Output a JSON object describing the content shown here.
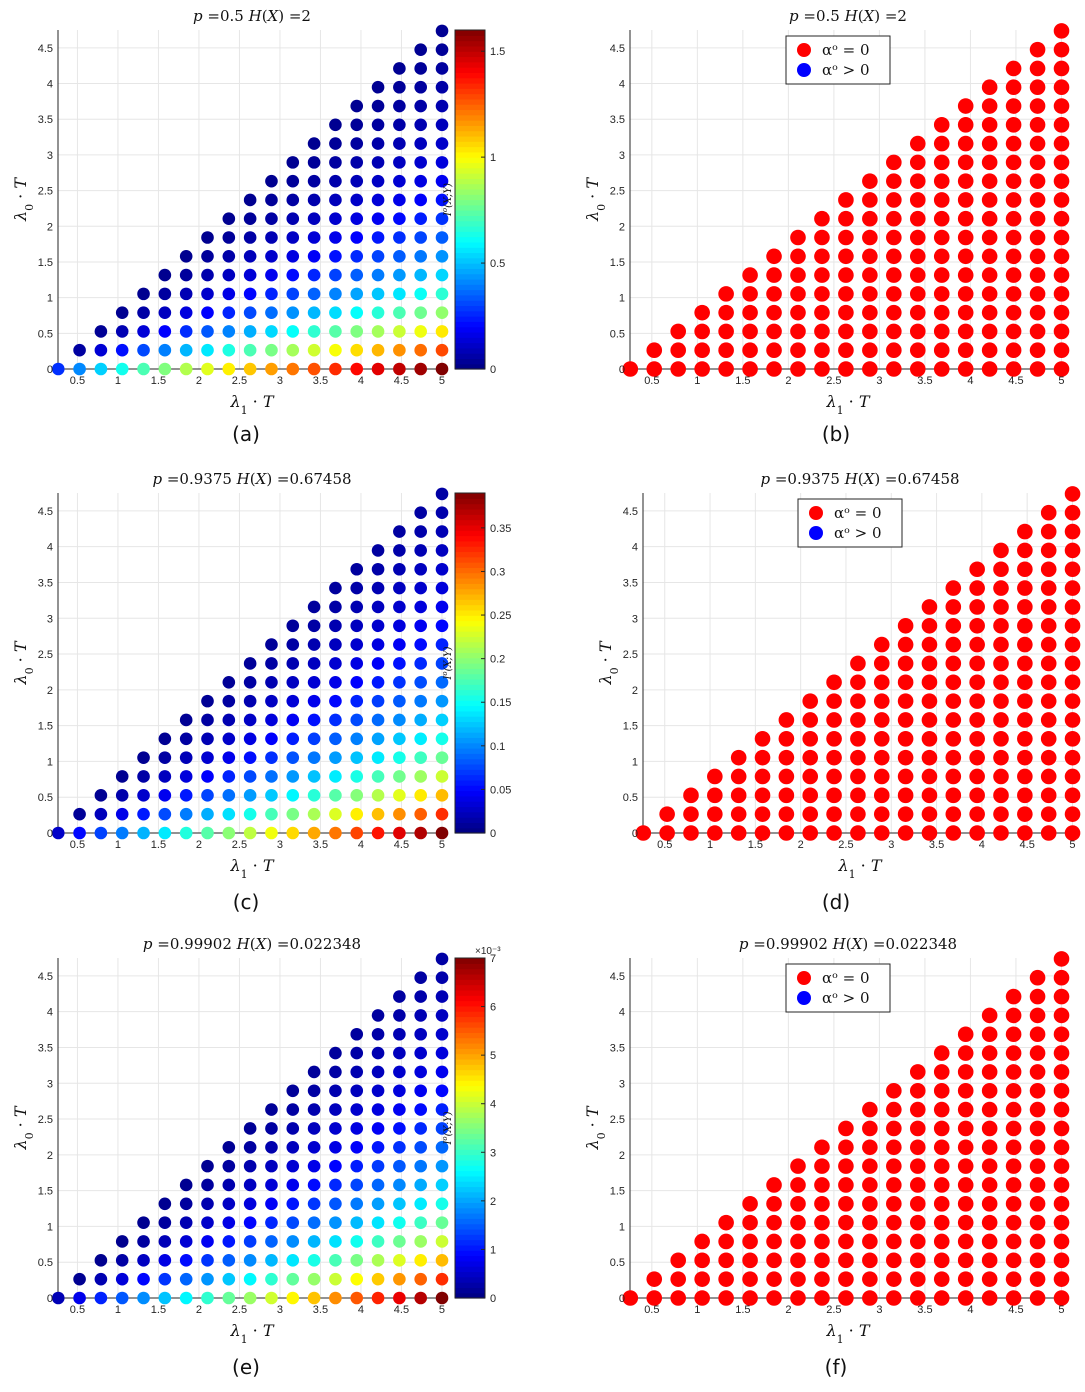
{
  "figure": {
    "captions": [
      "(a)",
      "(b)",
      "(c)",
      "(d)",
      "(e)",
      "(f)"
    ]
  },
  "chart_data": [
    {
      "id": "a",
      "type": "scatter",
      "title": "p =0.5    H(X) =2",
      "xlabel": "λ1 · T",
      "ylabel": "λ0 · T",
      "xlim": [
        0.26,
        5.05
      ],
      "ylim": [
        0,
        4.75
      ],
      "xticks": [
        "0.5",
        "1",
        "1.5",
        "2",
        "2.5",
        "3",
        "3.5",
        "4",
        "4.5",
        "5"
      ],
      "yticks": [
        "0",
        "0.5",
        "1",
        "1.5",
        "2",
        "2.5",
        "3",
        "3.5",
        "4",
        "4.5"
      ],
      "grid": true,
      "grid_step": 0.2632,
      "color_by": "mutual_information",
      "colorbar": {
        "label": "I^o(X;Y)",
        "min": 0,
        "max": 1.6,
        "ticks": [
          "0",
          "0.5",
          "1",
          "1.5"
        ],
        "exponent": "",
        "colormap": "jet"
      },
      "value_model": {
        "peak": 1.6,
        "exponent_b": 0.6,
        "decay": 2.6
      },
      "legend": null
    },
    {
      "id": "b",
      "type": "scatter",
      "title": "p =0.5    H(X) =2",
      "xlabel": "λ1 · T",
      "ylabel": "λ0 · T",
      "xlim": [
        0.26,
        5.05
      ],
      "ylim": [
        0,
        4.75
      ],
      "xticks": [
        "0.5",
        "1",
        "1.5",
        "2",
        "2.5",
        "3",
        "3.5",
        "4",
        "4.5",
        "5"
      ],
      "yticks": [
        "0",
        "0.5",
        "1",
        "1.5",
        "2",
        "2.5",
        "3",
        "3.5",
        "4",
        "4.5"
      ],
      "grid": true,
      "grid_step": 0.2632,
      "color_by": "alpha_class",
      "point_color": "#ff0000",
      "legend": {
        "position": "top-center",
        "entries": [
          {
            "label": "αᵒ = 0",
            "color": "#ff0000"
          },
          {
            "label": "αᵒ > 0",
            "color": "#0000ff"
          }
        ]
      }
    },
    {
      "id": "c",
      "type": "scatter",
      "title": "p =0.9375    H(X) =0.67458",
      "xlabel": "λ1 · T",
      "ylabel": "λ0 · T",
      "xlim": [
        0.26,
        5.05
      ],
      "ylim": [
        0,
        4.75
      ],
      "xticks": [
        "0.5",
        "1",
        "1.5",
        "2",
        "2.5",
        "3",
        "3.5",
        "4",
        "4.5",
        "5"
      ],
      "yticks": [
        "0",
        "0.5",
        "1",
        "1.5",
        "2",
        "2.5",
        "3",
        "3.5",
        "4",
        "4.5"
      ],
      "grid": true,
      "grid_step": 0.2632,
      "color_by": "mutual_information",
      "colorbar": {
        "label": "I^o(X;Y)",
        "min": 0,
        "max": 0.39,
        "ticks": [
          "0",
          "0.05",
          "0.1",
          "0.15",
          "0.2",
          "0.25",
          "0.3",
          "0.35"
        ],
        "exponent": "",
        "colormap": "jet"
      },
      "value_model": {
        "peak": 0.39,
        "exponent_b": 0.9,
        "decay": 2.2
      },
      "legend": null
    },
    {
      "id": "d",
      "type": "scatter",
      "title": "p =0.9375    H(X) =0.67458",
      "xlabel": "λ1 · T",
      "ylabel": "λ0 · T",
      "xlim": [
        0.26,
        5.05
      ],
      "ylim": [
        0,
        4.75
      ],
      "xticks": [
        "0.5",
        "1",
        "1.5",
        "2",
        "2.5",
        "3",
        "3.5",
        "4",
        "4.5",
        "5"
      ],
      "yticks": [
        "0",
        "0.5",
        "1",
        "1.5",
        "2",
        "2.5",
        "3",
        "3.5",
        "4",
        "4.5"
      ],
      "grid": true,
      "grid_step": 0.2632,
      "color_by": "alpha_class",
      "point_color": "#ff0000",
      "legend": {
        "position": "top-center",
        "entries": [
          {
            "label": "αᵒ = 0",
            "color": "#ff0000"
          },
          {
            "label": "αᵒ > 0",
            "color": "#0000ff"
          }
        ]
      }
    },
    {
      "id": "e",
      "type": "scatter",
      "title": "p =0.99902    H(X) =0.022348",
      "xlabel": "λ1 · T",
      "ylabel": "λ0 · T",
      "xlim": [
        0.26,
        5.05
      ],
      "ylim": [
        0,
        4.75
      ],
      "xticks": [
        "0.5",
        "1",
        "1.5",
        "2",
        "2.5",
        "3",
        "3.5",
        "4",
        "4.5",
        "5"
      ],
      "yticks": [
        "0",
        "0.5",
        "1",
        "1.5",
        "2",
        "2.5",
        "3",
        "3.5",
        "4",
        "4.5"
      ],
      "grid": true,
      "grid_step": 0.2632,
      "color_by": "mutual_information",
      "colorbar": {
        "label": "I^o(X;Y)",
        "min": 0,
        "max": 7,
        "ticks": [
          "0",
          "1",
          "2",
          "3",
          "4",
          "5",
          "6",
          "7"
        ],
        "exponent": "×10⁻³",
        "colormap": "jet"
      },
      "value_model": {
        "peak": 7,
        "exponent_b": 1.0,
        "decay": 2.2
      },
      "legend": null
    },
    {
      "id": "f",
      "type": "scatter",
      "title": "p =0.99902    H(X) =0.022348",
      "xlabel": "λ1 · T",
      "ylabel": "λ0 · T",
      "xlim": [
        0.26,
        5.05
      ],
      "ylim": [
        0,
        4.75
      ],
      "xticks": [
        "0.5",
        "1",
        "1.5",
        "2",
        "2.5",
        "3",
        "3.5",
        "4",
        "4.5",
        "5"
      ],
      "yticks": [
        "0",
        "0.5",
        "1",
        "1.5",
        "2",
        "2.5",
        "3",
        "3.5",
        "4",
        "4.5"
      ],
      "grid": true,
      "grid_step": 0.2632,
      "color_by": "alpha_class",
      "point_color": "#ff0000",
      "legend": {
        "position": "top-center",
        "entries": [
          {
            "label": "αᵒ = 0",
            "color": "#ff0000"
          },
          {
            "label": "αᵒ > 0",
            "color": "#0000ff"
          }
        ]
      }
    }
  ]
}
